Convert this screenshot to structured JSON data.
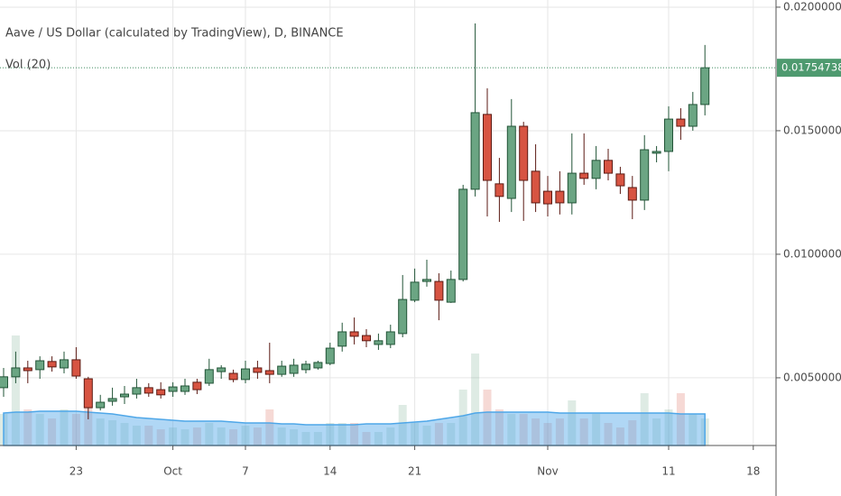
{
  "chart_data": {
    "type": "candlestick",
    "title": "Aave / US Dollar (calculated by TradingView), D, BINANCE",
    "indicator": "Vol (20)",
    "categories": [
      null,
      null,
      null,
      null,
      null,
      null,
      "23",
      null,
      null,
      null,
      null,
      null,
      null,
      null,
      "Oct",
      null,
      null,
      null,
      null,
      null,
      "7",
      null,
      null,
      null,
      null,
      null,
      null,
      "14",
      null,
      null,
      null,
      null,
      null,
      null,
      "21",
      null,
      null,
      null,
      null,
      null,
      null,
      null,
      null,
      null,
      null,
      "Nov",
      null,
      null,
      null,
      null,
      null,
      null,
      null,
      null,
      null,
      "11",
      null,
      null,
      null,
      null,
      null,
      null,
      "18"
    ],
    "open": [
      0.0046,
      0.00504,
      0.0054,
      0.00533,
      0.00566,
      0.0054,
      0.00573,
      0.00496,
      0.00379,
      0.00405,
      0.00423,
      0.00434,
      0.0046,
      0.00452,
      0.00445,
      0.00445,
      0.00482,
      0.00478,
      0.00525,
      0.00518,
      0.00493,
      0.0054,
      0.00529,
      0.00514,
      0.00518,
      0.00533,
      0.0054,
      0.00558,
      0.00628,
      0.00686,
      0.00671,
      0.00635,
      0.00635,
      0.00679,
      0.00814,
      0.0089,
      0.0089,
      0.00806,
      0.00898,
      0.01263,
      0.01566,
      0.01285,
      0.01226,
      0.01518,
      0.01336,
      0.01255,
      0.01255,
      0.01208,
      0.01328,
      0.01307,
      0.0138,
      0.01325,
      0.0127,
      0.01219,
      0.01409,
      0.01416,
      0.01547,
      0.01518,
      0.01606,
      null,
      null,
      null,
      null
    ],
    "high": [
      0.0054,
      0.00606,
      0.00569,
      0.00587,
      0.00587,
      0.00606,
      0.00624,
      0.00504,
      0.00431,
      0.0046,
      0.00467,
      0.00496,
      0.00478,
      0.00482,
      0.00482,
      0.00496,
      0.00496,
      0.00577,
      0.00551,
      0.00533,
      0.00569,
      0.00569,
      0.00642,
      0.00569,
      0.00577,
      0.00569,
      0.00569,
      0.00642,
      0.00723,
      0.00744,
      0.00697,
      0.00679,
      0.00715,
      0.00916,
      0.00942,
      0.00978,
      0.00923,
      0.00934,
      0.01281,
      0.01934,
      0.01672,
      0.0139,
      0.01628,
      0.01536,
      0.01445,
      0.01317,
      0.01336,
      0.01489,
      0.01489,
      0.01438,
      0.01427,
      0.01354,
      0.01317,
      0.01482,
      0.01438,
      0.01599,
      0.01591,
      0.01657,
      0.01847,
      null,
      null,
      null,
      null
    ],
    "low": [
      0.00423,
      0.00478,
      0.00478,
      0.00496,
      0.00525,
      0.00518,
      0.00496,
      0.00332,
      0.00368,
      0.00387,
      0.00394,
      0.00416,
      0.00423,
      0.00416,
      0.00423,
      0.00431,
      0.00434,
      0.00467,
      0.00496,
      0.00482,
      0.00478,
      0.00496,
      0.00478,
      0.00504,
      0.00504,
      0.00518,
      0.00533,
      0.00551,
      0.00606,
      0.00635,
      0.00624,
      0.00613,
      0.0062,
      0.00664,
      0.00806,
      0.00869,
      0.00733,
      0.00803,
      0.0089,
      0.01234,
      0.01153,
      0.01131,
      0.01171,
      0.01135,
      0.01171,
      0.01153,
      0.01161,
      0.01161,
      0.01281,
      0.01263,
      0.01299,
      0.01244,
      0.01142,
      0.01179,
      0.01372,
      0.01336,
      0.01463,
      0.015,
      0.01562,
      null,
      null,
      null,
      null
    ],
    "close": [
      0.00504,
      0.0054,
      0.00529,
      0.00569,
      0.00544,
      0.00573,
      0.00507,
      0.00379,
      0.00401,
      0.00416,
      0.00434,
      0.0046,
      0.00438,
      0.00431,
      0.00463,
      0.00467,
      0.00452,
      0.00533,
      0.0054,
      0.00493,
      0.00536,
      0.00522,
      0.00514,
      0.00547,
      0.00551,
      0.00555,
      0.00562,
      0.0062,
      0.00686,
      0.00668,
      0.0065,
      0.0065,
      0.00686,
      0.00817,
      0.00887,
      0.00898,
      0.00814,
      0.00898,
      0.01263,
      0.01573,
      0.01299,
      0.01234,
      0.01518,
      0.01299,
      0.01208,
      0.01204,
      0.01208,
      0.01328,
      0.01307,
      0.0138,
      0.01328,
      0.01277,
      0.01219,
      0.01423,
      0.01416,
      0.01547,
      0.01518,
      0.01606,
      0.01754738,
      null,
      null,
      null,
      null
    ],
    "volume": [
      35,
      122,
      40,
      35,
      30,
      40,
      35,
      55,
      30,
      28,
      25,
      22,
      22,
      18,
      20,
      18,
      20,
      25,
      20,
      18,
      22,
      20,
      40,
      20,
      18,
      15,
      15,
      25,
      25,
      25,
      15,
      15,
      20,
      45,
      25,
      22,
      25,
      25,
      62,
      102,
      62,
      40,
      35,
      35,
      30,
      25,
      30,
      50,
      30,
      35,
      25,
      20,
      28,
      58,
      30,
      40,
      58,
      35,
      30,
      null,
      null,
      null,
      null
    ],
    "volume_ma": [
      36,
      37,
      37,
      38,
      38,
      38,
      38,
      37,
      36,
      35,
      33,
      31,
      30,
      29,
      28,
      27,
      27,
      27,
      27,
      26,
      25,
      25,
      25,
      24,
      24,
      23,
      23,
      23,
      23,
      23,
      24,
      24,
      24,
      25,
      26,
      27,
      29,
      31,
      33,
      36,
      37,
      37,
      37,
      37,
      37,
      37,
      36,
      36,
      36,
      36,
      36,
      36,
      36,
      36,
      36,
      36,
      35,
      35,
      35,
      null,
      null,
      null,
      null
    ],
    "up_color": "#6ba583",
    "down_color": "#d75442",
    "volume_ma_color": "#4fa7e8",
    "ylim": [
      0.00226,
      0.02029
    ],
    "yticks": [
      {
        "value": 0.005,
        "label": "0.00500000"
      },
      {
        "value": 0.01,
        "label": "0.01000000"
      },
      {
        "value": 0.015,
        "label": "0.01500000"
      },
      {
        "value": 0.02,
        "label": "0.02000000"
      }
    ],
    "grid": true
  }
}
